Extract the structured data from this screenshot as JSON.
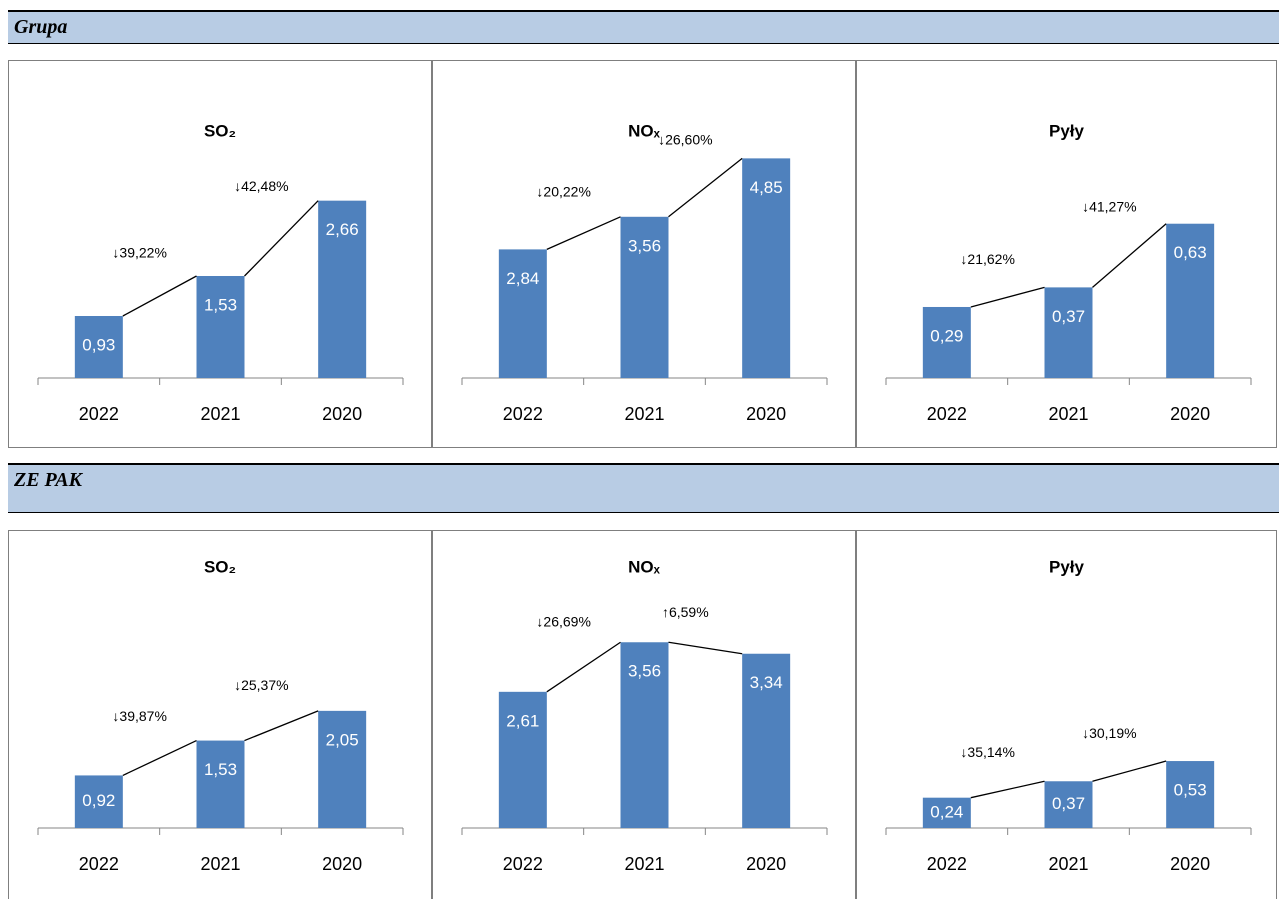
{
  "sections": [
    {
      "title": "Grupa"
    },
    {
      "title": "ZE PAK"
    }
  ],
  "chart_data": [
    {
      "type": "bar",
      "title": "SO₂",
      "categories": [
        "2022",
        "2021",
        "2020"
      ],
      "values": [
        0.93,
        1.53,
        2.66
      ],
      "value_labels": [
        "0,93",
        "1,53",
        "2,66"
      ],
      "annotations": [
        "↓39,22%",
        "↓42,48%"
      ],
      "color": "#4f81bd",
      "ylim": [
        0,
        3.6
      ]
    },
    {
      "type": "bar",
      "title": "NOₓ",
      "categories": [
        "2022",
        "2021",
        "2020"
      ],
      "values": [
        2.84,
        3.56,
        4.85
      ],
      "value_labels": [
        "2,84",
        "3,56",
        "4,85"
      ],
      "annotations": [
        "↓20,22%",
        "↓26,60%"
      ],
      "color": "#4f81bd",
      "ylim": [
        0,
        5.3
      ]
    },
    {
      "type": "bar",
      "title": "Pyły",
      "categories": [
        "2022",
        "2021",
        "2020"
      ],
      "values": [
        0.29,
        0.37,
        0.63
      ],
      "value_labels": [
        "0,29",
        "0,37",
        "0,63"
      ],
      "annotations": [
        "↓21,62%",
        "↓41,27%"
      ],
      "color": "#4f81bd",
      "ylim": [
        0,
        0.98
      ]
    },
    {
      "type": "bar",
      "title": "SO₂",
      "categories": [
        "2022",
        "2021",
        "2020"
      ],
      "values": [
        0.92,
        1.53,
        2.05
      ],
      "value_labels": [
        "0,92",
        "1,53",
        "2,05"
      ],
      "annotations": [
        "↓39,87%",
        "↓25,37%"
      ],
      "color": "#4f81bd",
      "ylim": [
        0,
        4.2
      ]
    },
    {
      "type": "bar",
      "title": "NOₓ",
      "categories": [
        "2022",
        "2021",
        "2020"
      ],
      "values": [
        2.61,
        3.56,
        3.34
      ],
      "value_labels": [
        "2,61",
        "3,56",
        "3,34"
      ],
      "annotations": [
        "↓26,69%",
        "↑6,59%"
      ],
      "color": "#4f81bd",
      "ylim": [
        0,
        4.6
      ]
    },
    {
      "type": "bar",
      "title": "Pyły",
      "categories": [
        "2022",
        "2021",
        "2020"
      ],
      "values": [
        0.24,
        0.37,
        0.53
      ],
      "value_labels": [
        "0,24",
        "0,37",
        "0,53"
      ],
      "annotations": [
        "↓35,14%",
        "↓30,19%"
      ],
      "color": "#4f81bd",
      "ylim": [
        0,
        1.9
      ]
    }
  ]
}
